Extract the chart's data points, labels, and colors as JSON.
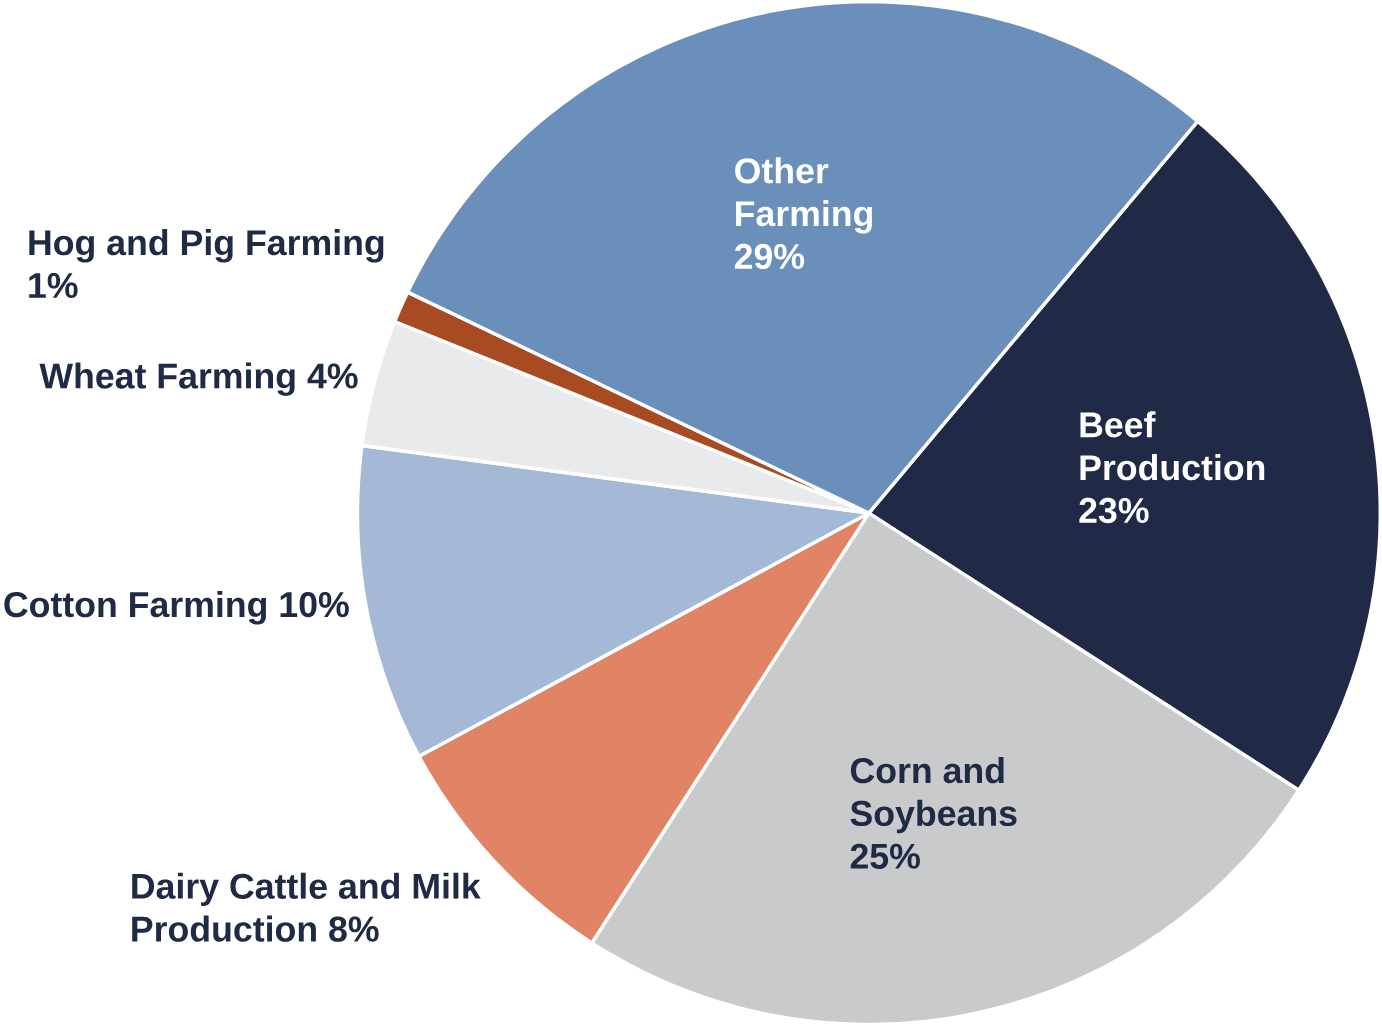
{
  "chart_data": {
    "type": "pie",
    "categories": [
      "Beef Production",
      "Corn and Soybeans",
      "Dairy Cattle and Milk Production",
      "Cotton Farming",
      "Wheat Farming",
      "Hog and Pig Farming",
      "Other Farming"
    ],
    "values": [
      23,
      25,
      8,
      10,
      4,
      1,
      29
    ],
    "value_labels": [
      "23%",
      "25%",
      "8%",
      "10%",
      "4%",
      "1%",
      "29%"
    ],
    "colors": [
      "#202a47",
      "#c9cacc",
      "#e08465",
      "#a4b9d6",
      "#e9eaeb",
      "#a84a22",
      "#6a8fba"
    ]
  }
}
